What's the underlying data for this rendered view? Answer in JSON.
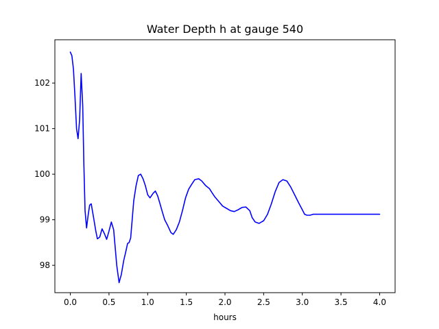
{
  "chart_data": {
    "type": "line",
    "title": "Water Depth h at gauge 540",
    "xlabel": "hours",
    "ylabel": "",
    "xlim": [
      -0.2,
      4.2
    ],
    "ylim": [
      97.4,
      102.95
    ],
    "xticks": [
      0.0,
      0.5,
      1.0,
      1.5,
      2.0,
      2.5,
      3.0,
      3.5,
      4.0
    ],
    "xtick_labels": [
      "0.0",
      "0.5",
      "1.0",
      "1.5",
      "2.0",
      "2.5",
      "3.0",
      "3.5",
      "4.0"
    ],
    "yticks": [
      98,
      99,
      100,
      101,
      102
    ],
    "ytick_labels": [
      "98",
      "99",
      "100",
      "101",
      "102"
    ],
    "grid": false,
    "series": [
      {
        "color": "#0000ff",
        "x": [
          0.0,
          0.02,
          0.04,
          0.06,
          0.08,
          0.1,
          0.12,
          0.14,
          0.16,
          0.175,
          0.19,
          0.21,
          0.23,
          0.25,
          0.27,
          0.3,
          0.33,
          0.35,
          0.38,
          0.41,
          0.44,
          0.47,
          0.5,
          0.53,
          0.56,
          0.6,
          0.63,
          0.66,
          0.69,
          0.72,
          0.74,
          0.76,
          0.78,
          0.8,
          0.82,
          0.85,
          0.88,
          0.91,
          0.94,
          0.97,
          1.0,
          1.03,
          1.07,
          1.1,
          1.13,
          1.16,
          1.19,
          1.22,
          1.26,
          1.3,
          1.33,
          1.37,
          1.41,
          1.45,
          1.49,
          1.53,
          1.57,
          1.61,
          1.66,
          1.7,
          1.75,
          1.8,
          1.83,
          1.87,
          1.92,
          1.97,
          2.02,
          2.07,
          2.12,
          2.17,
          2.22,
          2.27,
          2.32,
          2.35,
          2.39,
          2.44,
          2.5,
          2.55,
          2.6,
          2.65,
          2.7,
          2.75,
          2.8,
          2.85,
          2.9,
          2.95,
          3.0,
          3.03,
          3.06,
          3.1,
          3.14,
          3.18,
          3.21,
          3.25,
          3.3,
          3.35,
          3.4,
          3.45,
          3.5,
          3.55,
          3.58,
          3.63,
          3.68,
          3.73,
          3.78,
          3.83,
          3.88,
          3.93,
          3.97,
          4.0
        ],
        "y": [
          102.68,
          102.6,
          102.3,
          101.7,
          101.0,
          100.78,
          101.2,
          102.21,
          101.5,
          100.2,
          99.2,
          98.82,
          99.1,
          99.32,
          99.35,
          99.05,
          98.75,
          98.58,
          98.62,
          98.8,
          98.7,
          98.57,
          98.75,
          98.95,
          98.78,
          98.0,
          97.62,
          97.8,
          98.1,
          98.32,
          98.48,
          98.5,
          98.6,
          99.0,
          99.42,
          99.75,
          99.97,
          100.0,
          99.9,
          99.75,
          99.55,
          99.48,
          99.58,
          99.63,
          99.52,
          99.35,
          99.17,
          99.0,
          98.87,
          98.72,
          98.68,
          98.78,
          98.95,
          99.2,
          99.48,
          99.67,
          99.78,
          99.88,
          99.9,
          99.85,
          99.75,
          99.68,
          99.6,
          99.5,
          99.4,
          99.3,
          99.25,
          99.2,
          99.18,
          99.22,
          99.27,
          99.28,
          99.2,
          99.05,
          98.95,
          98.92,
          98.98,
          99.12,
          99.35,
          99.62,
          99.82,
          99.88,
          99.85,
          99.72,
          99.55,
          99.38,
          99.22,
          99.12,
          99.1,
          99.1,
          99.12,
          99.12,
          99.12,
          99.12,
          99.12,
          99.12,
          99.12,
          99.12,
          99.12,
          99.12,
          99.12,
          99.12,
          99.12,
          99.12,
          99.12,
          99.12,
          99.12,
          99.12,
          99.12,
          99.12
        ]
      }
    ]
  }
}
